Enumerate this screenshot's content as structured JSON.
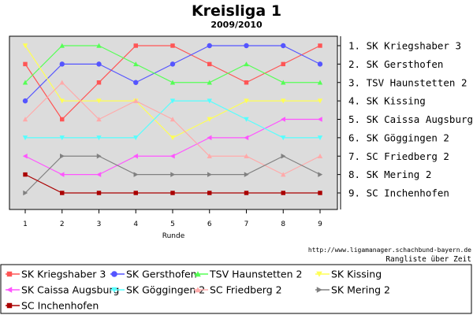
{
  "chart_data": {
    "type": "line",
    "title": "Kreisliga 1",
    "subtitle": "2009/2010",
    "xlabel": "Runde",
    "ylabel": "",
    "x": [
      1,
      2,
      3,
      4,
      5,
      6,
      7,
      8,
      9
    ],
    "ylim": [
      1,
      9
    ],
    "y_inverted": true,
    "grid": false,
    "ranking": [
      "1. SK Kriegshaber 3",
      "2. SK Gersthofen",
      "3. TSV Haunstetten 2",
      "4. SK Kissing",
      "5. SK Caissa Augsburg",
      "6. SK Göggingen 2",
      "7. SC Friedberg 2",
      "8. SK Mering 2",
      "9. SC Inchenhofen"
    ],
    "source_url": "http://www.ligamanager.schachbund-bayern.de",
    "caption": "Rangliste über Zeit",
    "legend_position": "bottom",
    "series": [
      {
        "name": "SK Kriegshaber 3",
        "color": "#ff5555",
        "marker": "square",
        "values": [
          2,
          5,
          3,
          1,
          1,
          2,
          3,
          2,
          1
        ]
      },
      {
        "name": "SK Gersthofen",
        "color": "#5555ff",
        "marker": "circle",
        "values": [
          4,
          2,
          2,
          3,
          2,
          1,
          1,
          1,
          2
        ]
      },
      {
        "name": "TSV Haunstetten 2",
        "color": "#55ff55",
        "marker": "triangle-up",
        "values": [
          3,
          1,
          1,
          2,
          3,
          3,
          2,
          3,
          3
        ]
      },
      {
        "name": "SK Kissing",
        "color": "#ffff55",
        "marker": "triangle-down",
        "values": [
          1,
          4,
          4,
          4,
          6,
          5,
          4,
          4,
          4
        ]
      },
      {
        "name": "SK Caissa Augsburg",
        "color": "#ff55ff",
        "marker": "triangle-left",
        "values": [
          7,
          8,
          8,
          7,
          7,
          6,
          6,
          5,
          5
        ]
      },
      {
        "name": "SK Göggingen 2",
        "color": "#55ffff",
        "marker": "triangle-down",
        "values": [
          6,
          6,
          6,
          6,
          4,
          4,
          5,
          6,
          6
        ]
      },
      {
        "name": "SC Friedberg 2",
        "color": "#ffaaaa",
        "marker": "triangle-up",
        "values": [
          5,
          3,
          5,
          4,
          5,
          7,
          7,
          8,
          7
        ]
      },
      {
        "name": "SK Mering 2",
        "color": "#808080",
        "marker": "triangle-right",
        "values": [
          9,
          7,
          7,
          8,
          8,
          8,
          8,
          7,
          8
        ]
      },
      {
        "name": "SC Inchenhofen",
        "color": "#aa0000",
        "marker": "square",
        "values": [
          8,
          9,
          9,
          9,
          9,
          9,
          9,
          9,
          9
        ]
      }
    ]
  }
}
